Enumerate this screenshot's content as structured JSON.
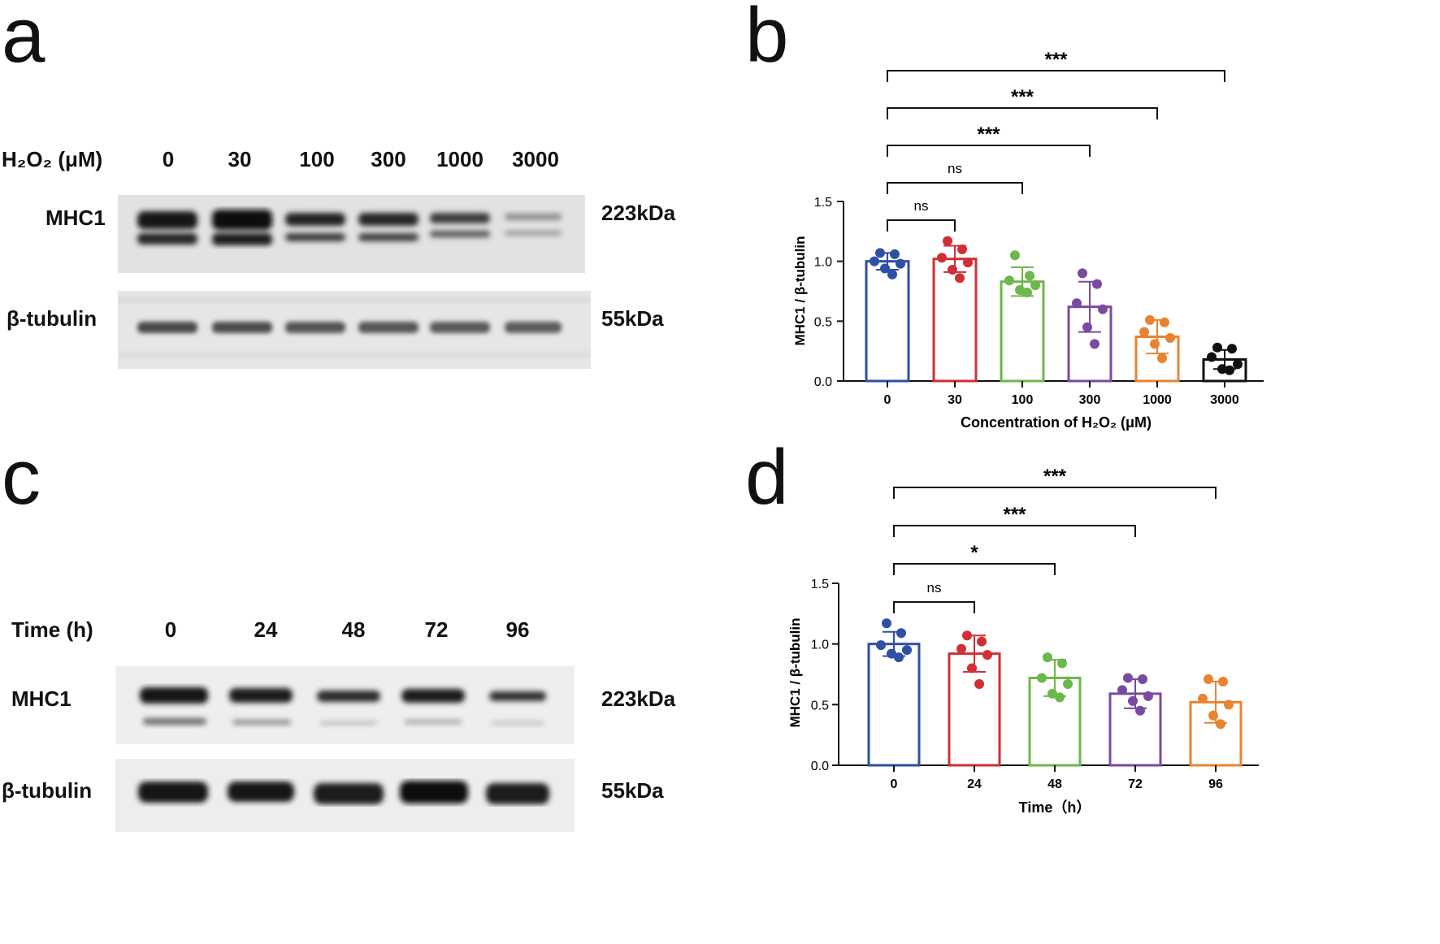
{
  "panels": {
    "a": {
      "letter": "a",
      "condition_label": "H₂O₂ (μM)",
      "lanes": [
        "0",
        "30",
        "100",
        "300",
        "1000",
        "3000"
      ],
      "rows": [
        {
          "name": "MHC1",
          "size": "223kDa"
        },
        {
          "name": "β-tubulin",
          "size": "55kDa"
        }
      ]
    },
    "c": {
      "letter": "c",
      "condition_label": "Time (h)",
      "lanes": [
        "0",
        "24",
        "48",
        "72",
        "96"
      ],
      "rows": [
        {
          "name": "MHC1",
          "size": "223kDa"
        },
        {
          "name": "β-tubulin",
          "size": "55kDa"
        }
      ]
    },
    "b": {
      "letter": "b"
    },
    "d": {
      "letter": "d"
    }
  },
  "chart_data": [
    {
      "panel": "b",
      "type": "bar",
      "categories": [
        "0",
        "30",
        "100",
        "300",
        "1000",
        "3000"
      ],
      "values": [
        1.0,
        1.02,
        0.83,
        0.62,
        0.37,
        0.18
      ],
      "errors": [
        0.07,
        0.11,
        0.12,
        0.21,
        0.14,
        0.08
      ],
      "points": [
        [
          1.07,
          1.06,
          1.0,
          0.98,
          0.94,
          0.89
        ],
        [
          1.17,
          1.1,
          1.03,
          0.99,
          0.93,
          0.86
        ],
        [
          1.05,
          0.88,
          0.84,
          0.8,
          0.76,
          0.74
        ],
        [
          0.9,
          0.81,
          0.65,
          0.6,
          0.45,
          0.31
        ],
        [
          0.51,
          0.49,
          0.41,
          0.36,
          0.31,
          0.19
        ],
        [
          0.28,
          0.27,
          0.2,
          0.14,
          0.1,
          0.09
        ]
      ],
      "colors": [
        "#2e4fa5",
        "#d02f36",
        "#6cb84a",
        "#7a4aa0",
        "#e88430",
        "#111111"
      ],
      "ylabel": "MHC1 / β-tubulin",
      "xlabel": "Concentration of H₂O₂ (μM)",
      "yticks": [
        "0.0",
        "0.5",
        "1.0",
        "1.5"
      ],
      "ylim": [
        0,
        1.5
      ],
      "comparisons": [
        {
          "from": "0",
          "to": "30",
          "label": "ns"
        },
        {
          "from": "0",
          "to": "100",
          "label": "ns"
        },
        {
          "from": "0",
          "to": "300",
          "label": "***"
        },
        {
          "from": "0",
          "to": "1000",
          "label": "***"
        },
        {
          "from": "0",
          "to": "3000",
          "label": "***"
        }
      ]
    },
    {
      "panel": "d",
      "type": "bar",
      "categories": [
        "0",
        "24",
        "48",
        "72",
        "96"
      ],
      "values": [
        1.0,
        0.92,
        0.72,
        0.59,
        0.52
      ],
      "errors": [
        0.1,
        0.15,
        0.15,
        0.12,
        0.17
      ],
      "points": [
        [
          1.17,
          1.09,
          0.99,
          0.95,
          0.92,
          0.89
        ],
        [
          1.07,
          1.02,
          0.96,
          0.91,
          0.8,
          0.67
        ],
        [
          0.89,
          0.84,
          0.72,
          0.67,
          0.59,
          0.56
        ],
        [
          0.72,
          0.71,
          0.62,
          0.57,
          0.53,
          0.45
        ],
        [
          0.71,
          0.69,
          0.55,
          0.5,
          0.41,
          0.34
        ]
      ],
      "colors": [
        "#2e4fa5",
        "#d02f36",
        "#6cb84a",
        "#7a4aa0",
        "#e88430"
      ],
      "ylabel": "MHC1 / β-tubulin",
      "xlabel": "Time（h）",
      "yticks": [
        "0.0",
        "0.5",
        "1.0",
        "1.5"
      ],
      "ylim": [
        0,
        1.5
      ],
      "comparisons": [
        {
          "from": "0",
          "to": "24",
          "label": "ns"
        },
        {
          "from": "0",
          "to": "48",
          "label": "*"
        },
        {
          "from": "0",
          "to": "72",
          "label": "***"
        },
        {
          "from": "0",
          "to": "96",
          "label": "***"
        }
      ]
    }
  ]
}
